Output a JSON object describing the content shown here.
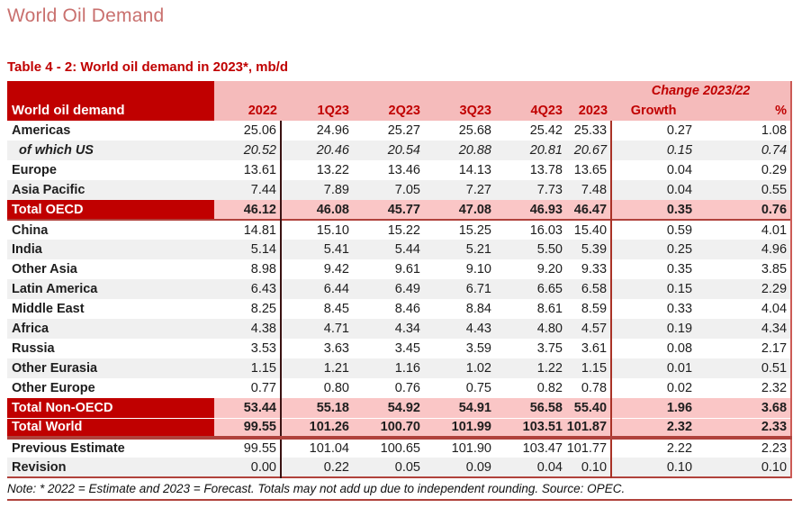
{
  "page": {
    "title": "World Oil Demand",
    "table_caption": "Table 4 - 2: World oil demand in 2023*, mb/d",
    "note": "Note: * 2022 = Estimate and 2023 = Forecast. Totals may not add up due to independent rounding. Source: OPEC."
  },
  "colors": {
    "title_salmon": "#C9706E",
    "accent_dark_red": "#C00000",
    "header_pink": "#F5BBBB",
    "total_row_pink": "#FAC6C6",
    "stripe_gray": "#F0F0F0",
    "rule_red": "#B0423C",
    "divider_dark": "#3A1212",
    "divider_red": "#A93226"
  },
  "table": {
    "corner_label": "World oil demand",
    "change_header": "Change 2023/22",
    "columns": [
      "2022",
      "1Q23",
      "2Q23",
      "3Q23",
      "4Q23",
      "2023",
      "Growth",
      "%"
    ],
    "rows": [
      {
        "label": "Americas",
        "style": "region",
        "values": [
          "25.06",
          "24.96",
          "25.27",
          "25.68",
          "25.42",
          "25.33",
          "0.27",
          "1.08"
        ]
      },
      {
        "label": "of which US",
        "style": "subitem",
        "values": [
          "20.52",
          "20.46",
          "20.54",
          "20.88",
          "20.81",
          "20.67",
          "0.15",
          "0.74"
        ]
      },
      {
        "label": "Europe",
        "style": "region",
        "values": [
          "13.61",
          "13.22",
          "13.46",
          "14.13",
          "13.78",
          "13.65",
          "0.04",
          "0.29"
        ]
      },
      {
        "label": "Asia Pacific",
        "style": "region",
        "values": [
          "7.44",
          "7.89",
          "7.05",
          "7.27",
          "7.73",
          "7.48",
          "0.04",
          "0.55"
        ]
      },
      {
        "label": "Total OECD",
        "style": "total-mid",
        "values": [
          "46.12",
          "46.08",
          "45.77",
          "47.08",
          "46.93",
          "46.47",
          "0.35",
          "0.76"
        ]
      },
      {
        "label": "China",
        "style": "region",
        "values": [
          "14.81",
          "15.10",
          "15.22",
          "15.25",
          "16.03",
          "15.40",
          "0.59",
          "4.01"
        ]
      },
      {
        "label": "India",
        "style": "region",
        "values": [
          "5.14",
          "5.41",
          "5.44",
          "5.21",
          "5.50",
          "5.39",
          "0.25",
          "4.96"
        ]
      },
      {
        "label": "Other Asia",
        "style": "region",
        "values": [
          "8.98",
          "9.42",
          "9.61",
          "9.10",
          "9.20",
          "9.33",
          "0.35",
          "3.85"
        ]
      },
      {
        "label": "Latin America",
        "style": "region",
        "values": [
          "6.43",
          "6.44",
          "6.49",
          "6.71",
          "6.65",
          "6.58",
          "0.15",
          "2.29"
        ]
      },
      {
        "label": "Middle East",
        "style": "region",
        "values": [
          "8.25",
          "8.45",
          "8.46",
          "8.84",
          "8.61",
          "8.59",
          "0.33",
          "4.04"
        ]
      },
      {
        "label": "Africa",
        "style": "region",
        "values": [
          "4.38",
          "4.71",
          "4.34",
          "4.43",
          "4.80",
          "4.57",
          "0.19",
          "4.34"
        ]
      },
      {
        "label": "Russia",
        "style": "region",
        "values": [
          "3.53",
          "3.63",
          "3.45",
          "3.59",
          "3.75",
          "3.61",
          "0.08",
          "2.17"
        ]
      },
      {
        "label": "Other Eurasia",
        "style": "region",
        "values": [
          "1.15",
          "1.21",
          "1.16",
          "1.02",
          "1.22",
          "1.15",
          "0.01",
          "0.51"
        ]
      },
      {
        "label": "Other Europe",
        "style": "region",
        "values": [
          "0.77",
          "0.80",
          "0.76",
          "0.75",
          "0.82",
          "0.78",
          "0.02",
          "2.32"
        ]
      },
      {
        "label": "Total Non-OECD",
        "style": "total-pre",
        "values": [
          "53.44",
          "55.18",
          "54.92",
          "54.91",
          "56.58",
          "55.40",
          "1.96",
          "3.68"
        ]
      },
      {
        "label": "Total World",
        "style": "total-end",
        "values": [
          "99.55",
          "101.26",
          "100.70",
          "101.99",
          "103.51",
          "101.87",
          "2.32",
          "2.33"
        ]
      },
      {
        "label": "Previous Estimate",
        "style": "plain",
        "values": [
          "99.55",
          "101.04",
          "100.65",
          "101.90",
          "103.47",
          "101.77",
          "2.22",
          "2.23"
        ]
      },
      {
        "label": "Revision",
        "style": "plain-end",
        "values": [
          "0.00",
          "0.22",
          "0.05",
          "0.09",
          "0.04",
          "0.10",
          "0.10",
          "0.10"
        ]
      }
    ]
  }
}
